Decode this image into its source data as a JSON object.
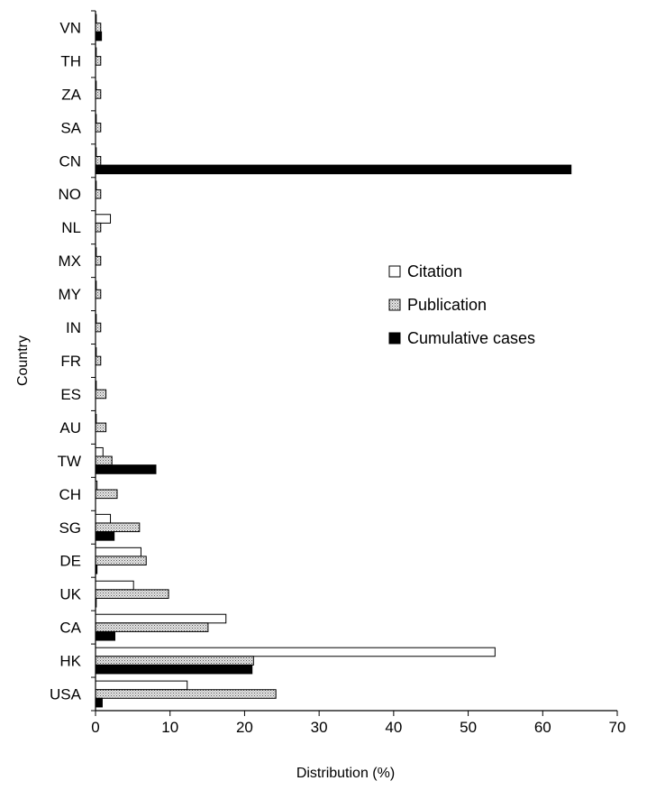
{
  "chart_data": {
    "type": "bar",
    "orientation": "horizontal",
    "title": "",
    "xlabel": "Distribution (%)",
    "ylabel": "Country",
    "xlim": [
      0,
      70
    ],
    "xticks": [
      0,
      10,
      20,
      30,
      40,
      50,
      60,
      70
    ],
    "grid": false,
    "legend_position": "right-middle",
    "categories": [
      "VN",
      "TH",
      "ZA",
      "SA",
      "CN",
      "NO",
      "NL",
      "MX",
      "MY",
      "IN",
      "FR",
      "ES",
      "AU",
      "TW",
      "CH",
      "SG",
      "DE",
      "UK",
      "CA",
      "HK",
      "USA"
    ],
    "series": [
      {
        "name": "Citation",
        "color": "#ffffff",
        "pattern": "none",
        "values": [
          0.1,
          0.1,
          0.1,
          0.1,
          0.1,
          0.1,
          2.0,
          0.1,
          0.1,
          0.1,
          0.1,
          0.1,
          0.1,
          1.0,
          0.2,
          2.0,
          6.1,
          5.1,
          17.5,
          53.6,
          12.3
        ]
      },
      {
        "name": "Publication",
        "color": "#d9d9d9",
        "pattern": "dotted",
        "values": [
          0.7,
          0.7,
          0.7,
          0.7,
          0.7,
          0.7,
          0.7,
          0.7,
          0.7,
          0.7,
          0.7,
          1.4,
          1.4,
          2.2,
          2.9,
          5.9,
          6.8,
          9.8,
          15.1,
          21.2,
          24.2
        ]
      },
      {
        "name": "Cumulative cases",
        "color": "#000000",
        "pattern": "solid",
        "values": [
          0.8,
          0.0,
          0.0,
          0.0,
          63.8,
          0.0,
          0.0,
          0.0,
          0.0,
          0.0,
          0.0,
          0.0,
          0.0,
          8.1,
          0.0,
          2.5,
          0.2,
          0.1,
          2.6,
          21.0,
          0.9
        ]
      }
    ]
  }
}
